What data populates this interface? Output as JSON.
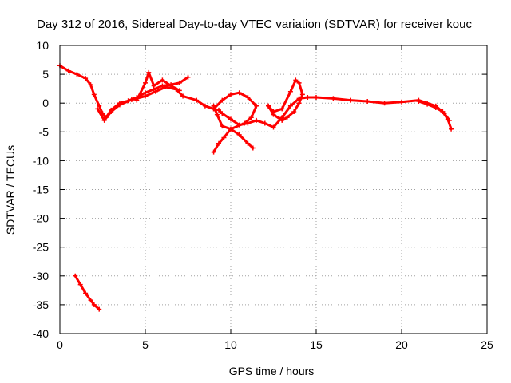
{
  "chart_data": {
    "type": "line",
    "title": "Day 312 of 2016, Sidereal Day-to-day VTEC variation (SDTVAR) for receiver kouc",
    "xlabel": "GPS time / hours",
    "ylabel": "SDTVAR / TECUs",
    "xlim": [
      0,
      25
    ],
    "ylim": [
      -40,
      10
    ],
    "x_ticks": [
      0,
      5,
      10,
      15,
      20,
      25
    ],
    "y_ticks": [
      10,
      5,
      0,
      -5,
      -10,
      -15,
      -20,
      -25,
      -30,
      -35,
      -40
    ],
    "x_tick_labels": [
      "0",
      "5",
      "10",
      "15",
      "20",
      "25"
    ],
    "y_tick_labels": [
      "10",
      "5",
      "0",
      "-5",
      "-10",
      "-15",
      "-20",
      "-25",
      "-30",
      "-35",
      "-40"
    ],
    "grid": true,
    "color": "#ff0000",
    "series": [
      {
        "name": "trace-main",
        "points": [
          [
            0,
            6.5
          ],
          [
            0.5,
            5.6
          ],
          [
            1.0,
            5.0
          ],
          [
            1.5,
            4.3
          ],
          [
            1.8,
            3.2
          ],
          [
            2.0,
            1.5
          ],
          [
            2.3,
            -0.5
          ],
          [
            2.5,
            -1.8
          ],
          [
            2.7,
            -2.5
          ],
          [
            3.0,
            -1.2
          ],
          [
            3.5,
            0.0
          ],
          [
            4.0,
            0.4
          ],
          [
            4.5,
            1.0
          ],
          [
            5.0,
            1.8
          ],
          [
            5.5,
            2.4
          ],
          [
            6.0,
            3.0
          ],
          [
            6.5,
            3.2
          ],
          [
            7.0,
            3.5
          ],
          [
            7.5,
            4.5
          ]
        ]
      },
      {
        "name": "trace-main-b",
        "points": [
          [
            2.2,
            -1.0
          ],
          [
            2.6,
            -3.0
          ],
          [
            3.0,
            -1.5
          ],
          [
            3.5,
            -0.3
          ],
          [
            4.2,
            0.6
          ],
          [
            5.0,
            1.2
          ],
          [
            5.6,
            2.0
          ],
          [
            6.2,
            2.8
          ],
          [
            6.8,
            2.4
          ],
          [
            7.2,
            1.2
          ],
          [
            8.0,
            0.5
          ],
          [
            8.5,
            -0.5
          ],
          [
            9.0,
            -1.0
          ],
          [
            9.3,
            -1.2
          ],
          [
            9.5,
            -1.8
          ],
          [
            10.0,
            -2.8
          ],
          [
            10.5,
            -3.8
          ],
          [
            11.0,
            -3.5
          ],
          [
            11.5,
            -3.0
          ],
          [
            12.0,
            -3.5
          ],
          [
            12.5,
            -4.2
          ],
          [
            13.0,
            -2.5
          ],
          [
            13.5,
            -0.5
          ],
          [
            14.0,
            0.8
          ],
          [
            14.5,
            1.0
          ],
          [
            15.0,
            1.0
          ],
          [
            16.0,
            0.8
          ],
          [
            17.0,
            0.5
          ],
          [
            18.0,
            0.3
          ],
          [
            19.0,
            0.0
          ],
          [
            20.0,
            0.2
          ],
          [
            21.0,
            0.5
          ],
          [
            21.5,
            0.0
          ],
          [
            22.0,
            -0.5
          ],
          [
            22.5,
            -1.8
          ],
          [
            22.8,
            -3.0
          ]
        ]
      },
      {
        "name": "trace-early-dip",
        "points": [
          [
            4.5,
            0.5
          ],
          [
            5.0,
            3.5
          ],
          [
            5.2,
            5.3
          ],
          [
            5.5,
            3.0
          ],
          [
            6.0,
            4.0
          ],
          [
            6.5,
            3.0
          ],
          [
            7.0,
            2.2
          ]
        ]
      },
      {
        "name": "trace-midday-loop",
        "points": [
          [
            9.0,
            -1.0
          ],
          [
            9.5,
            0.5
          ],
          [
            10.0,
            1.5
          ],
          [
            10.5,
            1.8
          ],
          [
            11.0,
            1.0
          ],
          [
            11.5,
            -0.5
          ],
          [
            11.2,
            -2.5
          ],
          [
            10.8,
            -3.5
          ],
          [
            10.0,
            -4.5
          ],
          [
            9.5,
            -4.0
          ],
          [
            9.2,
            -2.0
          ],
          [
            9.0,
            -0.5
          ]
        ]
      },
      {
        "name": "trace-midday-low",
        "points": [
          [
            9.0,
            -8.5
          ],
          [
            9.3,
            -7.0
          ],
          [
            9.6,
            -6.0
          ],
          [
            10.0,
            -4.5
          ],
          [
            10.5,
            -5.5
          ],
          [
            11.0,
            -7.0
          ],
          [
            11.3,
            -7.8
          ]
        ]
      },
      {
        "name": "trace-loop-14h",
        "points": [
          [
            12.2,
            -0.5
          ],
          [
            12.5,
            -1.5
          ],
          [
            13.0,
            -1.0
          ],
          [
            13.5,
            2.0
          ],
          [
            13.8,
            4.0
          ],
          [
            14.0,
            3.5
          ],
          [
            14.2,
            1.5
          ],
          [
            14.0,
            0.0
          ],
          [
            13.7,
            -1.5
          ],
          [
            13.3,
            -2.5
          ],
          [
            13.0,
            -3.0
          ],
          [
            12.5,
            -2.0
          ],
          [
            12.2,
            -0.5
          ]
        ]
      },
      {
        "name": "trace-late",
        "points": [
          [
            21.0,
            0.3
          ],
          [
            21.5,
            -0.2
          ],
          [
            22.0,
            -0.8
          ],
          [
            22.4,
            -1.5
          ],
          [
            22.7,
            -2.8
          ],
          [
            22.9,
            -4.5
          ]
        ]
      },
      {
        "name": "trace-outlier",
        "points": [
          [
            0.9,
            -30.0
          ],
          [
            1.2,
            -31.5
          ],
          [
            1.5,
            -33.0
          ],
          [
            1.8,
            -34.2
          ],
          [
            2.0,
            -35.0
          ],
          [
            2.3,
            -35.8
          ]
        ]
      }
    ]
  }
}
